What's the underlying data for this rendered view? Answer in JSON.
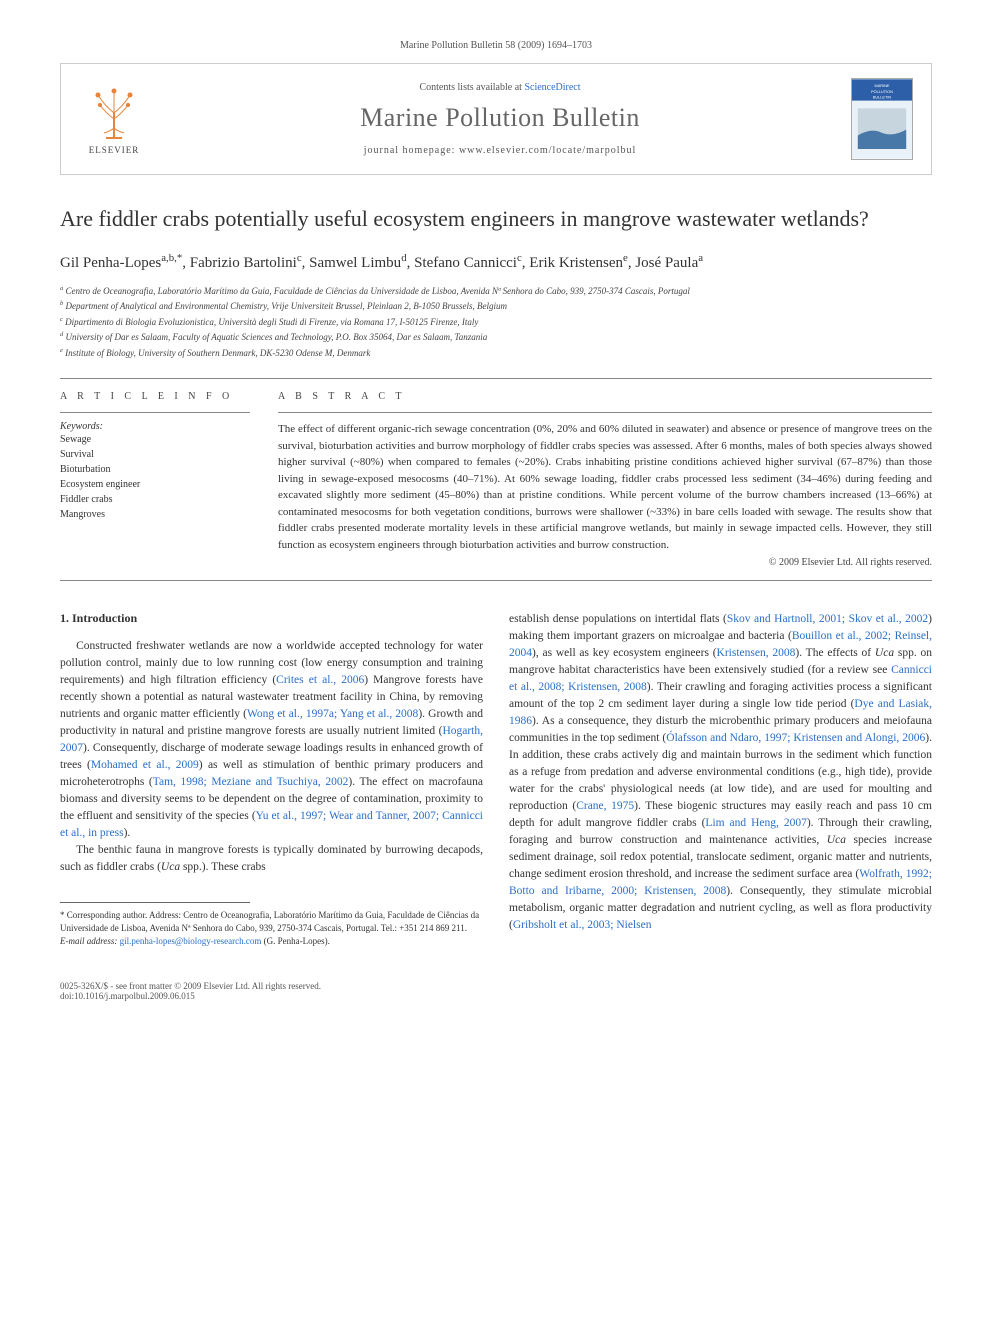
{
  "citation": "Marine Pollution Bulletin 58 (2009) 1694–1703",
  "header": {
    "publisher_label": "ELSEVIER",
    "contents_prefix": "Contents lists available at ",
    "contents_link": "ScienceDirect",
    "journal_name": "Marine Pollution Bulletin",
    "homepage_label": "journal homepage: ",
    "homepage_url": "www.elsevier.com/locate/marpolbul",
    "cover_colors": {
      "bg": "#e8f2f8",
      "band": "#2d5fa8",
      "text": "#fff"
    },
    "cover_text": "MARINE POLLUTION BULLETIN"
  },
  "title": "Are fiddler crabs potentially useful ecosystem engineers in mangrove wastewater wetlands?",
  "authors": [
    {
      "name": "Gil Penha-Lopes",
      "aff": "a,b,*"
    },
    {
      "name": "Fabrizio Bartolini",
      "aff": "c"
    },
    {
      "name": "Samwel Limbu",
      "aff": "d"
    },
    {
      "name": "Stefano Cannicci",
      "aff": "c"
    },
    {
      "name": "Erik Kristensen",
      "aff": "e"
    },
    {
      "name": "José Paula",
      "aff": "a"
    }
  ],
  "affiliations": [
    {
      "sup": "a",
      "text": "Centro de Oceanografia, Laboratório Marítimo da Guia, Faculdade de Ciências da Universidade de Lisboa, Avenida Nª Senhora do Cabo, 939, 2750-374 Cascais, Portugal"
    },
    {
      "sup": "b",
      "text": "Department of Analytical and Environmental Chemistry, Vrije Universiteit Brussel, Pleinlaan 2, B-1050 Brussels, Belgium"
    },
    {
      "sup": "c",
      "text": "Dipartimento di Biologia Evoluzionistica, Università degli Studi di Firenze, via Romana 17, I-50125 Firenze, Italy"
    },
    {
      "sup": "d",
      "text": "University of Dar es Salaam, Faculty of Aquatic Sciences and Technology, P.O. Box 35064, Dar es Salaam, Tanzania"
    },
    {
      "sup": "e",
      "text": "Institute of Biology, University of Southern Denmark, DK-5230 Odense M, Denmark"
    }
  ],
  "info": {
    "heading": "A R T I C L E   I N F O",
    "keywords_label": "Keywords:",
    "keywords": [
      "Sewage",
      "Survival",
      "Bioturbation",
      "Ecosystem engineer",
      "Fiddler crabs",
      "Mangroves"
    ]
  },
  "abstract": {
    "heading": "A B S T R A C T",
    "text": "The effect of different organic-rich sewage concentration (0%, 20% and 60% diluted in seawater) and absence or presence of mangrove trees on the survival, bioturbation activities and burrow morphology of fiddler crabs species was assessed. After 6 months, males of both species always showed higher survival (~80%) when compared to females (~20%). Crabs inhabiting pristine conditions achieved higher survival (67–87%) than those living in sewage-exposed mesocosms (40–71%). At 60% sewage loading, fiddler crabs processed less sediment (34–46%) during feeding and excavated slightly more sediment (45–80%) than at pristine conditions. While percent volume of the burrow chambers increased (13–66%) at contaminated mesocosms for both vegetation conditions, burrows were shallower (~33%) in bare cells loaded with sewage. The results show that fiddler crabs presented moderate mortality levels in these artificial mangrove wetlands, but mainly in sewage impacted cells. However, they still function as ecosystem engineers through bioturbation activities and burrow construction.",
    "copyright": "© 2009 Elsevier Ltd. All rights reserved."
  },
  "body": {
    "section_number": "1.",
    "section_title": "Introduction",
    "left_html": "Constructed freshwater wetlands are now a worldwide accepted technology for water pollution control, mainly due to low running cost (low energy consumption and training requirements) and high filtration efficiency (<span class='ref'>Crites et al., 2006</span>) Mangrove forests have recently shown a potential as natural wastewater treatment facility in China, by removing nutrients and organic matter efficiently (<span class='ref'>Wong et al., 1997a; Yang et al., 2008</span>). Growth and productivity in natural and pristine mangrove forests are usually nutrient limited (<span class='ref'>Hogarth, 2007</span>). Consequently, discharge of moderate sewage loadings results in enhanced growth of trees (<span class='ref'>Mohamed et al., 2009</span>) as well as stimulation of benthic primary producers and microheterotrophs (<span class='ref'>Tam, 1998; Meziane and Tsuchiya, 2002</span>). The effect on macrofauna biomass and diversity seems to be dependent on the degree of contamination, proximity to the effluent and sensitivity of the species (<span class='ref'>Yu et al., 1997; Wear and Tanner, 2007; Cannicci et al., in press</span>).",
    "left_html_p2": "The benthic fauna in mangrove forests is typically dominated by burrowing decapods, such as fiddler crabs (<i>Uca</i> spp.). These crabs",
    "right_html": "establish dense populations on intertidal flats (<span class='ref'>Skov and Hartnoll, 2001; Skov et al., 2002</span>) making them important grazers on microalgae and bacteria (<span class='ref'>Bouillon et al., 2002; Reinsel, 2004</span>), as well as key ecosystem engineers (<span class='ref'>Kristensen, 2008</span>). The effects of <i>Uca</i> spp. on mangrove habitat characteristics have been extensively studied (for a review see <span class='ref'>Cannicci et al., 2008; Kristensen, 2008</span>). Their crawling and foraging activities process a significant amount of the top 2 cm sediment layer during a single low tide period (<span class='ref'>Dye and Lasiak, 1986</span>). As a consequence, they disturb the microbenthic primary producers and meiofauna communities in the top sediment (<span class='ref'>Ólafsson and Ndaro, 1997; Kristensen and Alongi, 2006</span>). In addition, these crabs actively dig and maintain burrows in the sediment which function as a refuge from predation and adverse environmental conditions (e.g., high tide), provide water for the crabs' physiological needs (at low tide), and are used for moulting and reproduction (<span class='ref'>Crane, 1975</span>). These biogenic structures may easily reach and pass 10 cm depth for adult mangrove fiddler crabs (<span class='ref'>Lim and Heng, 2007</span>). Through their crawling, foraging and burrow construction and maintenance activities, <i>Uca</i> species increase sediment drainage, soil redox potential, translocate sediment, organic matter and nutrients, change sediment erosion threshold, and increase the sediment surface area (<span class='ref'>Wolfrath, 1992; Botto and Iribarne, 2000; Kristensen, 2008</span>). Consequently, they stimulate microbial metabolism, organic matter degradation and nutrient cycling, as well as flora productivity (<span class='ref'>Gribsholt et al., 2003; Nielsen</span>"
  },
  "footnote": {
    "corresponding": "* Corresponding author. Address: Centro de Oceanografia, Laboratório Marítimo da Guia, Faculdade de Ciências da Universidade de Lisboa, Avenida Nª Senhora do Cabo, 939, 2750-374 Cascais, Portugal. Tel.: +351 214 869 211.",
    "email_label": "E-mail address: ",
    "email": "gil.penha-lopes@biology-research.com",
    "email_suffix": " (G. Penha-Lopes)."
  },
  "footer": {
    "left1": "0025-326X/$ - see front matter © 2009 Elsevier Ltd. All rights reserved.",
    "left2": "doi:10.1016/j.marpolbul.2009.06.015"
  },
  "colors": {
    "link": "#2a6fc9",
    "rule": "#888888",
    "text": "#333333"
  }
}
